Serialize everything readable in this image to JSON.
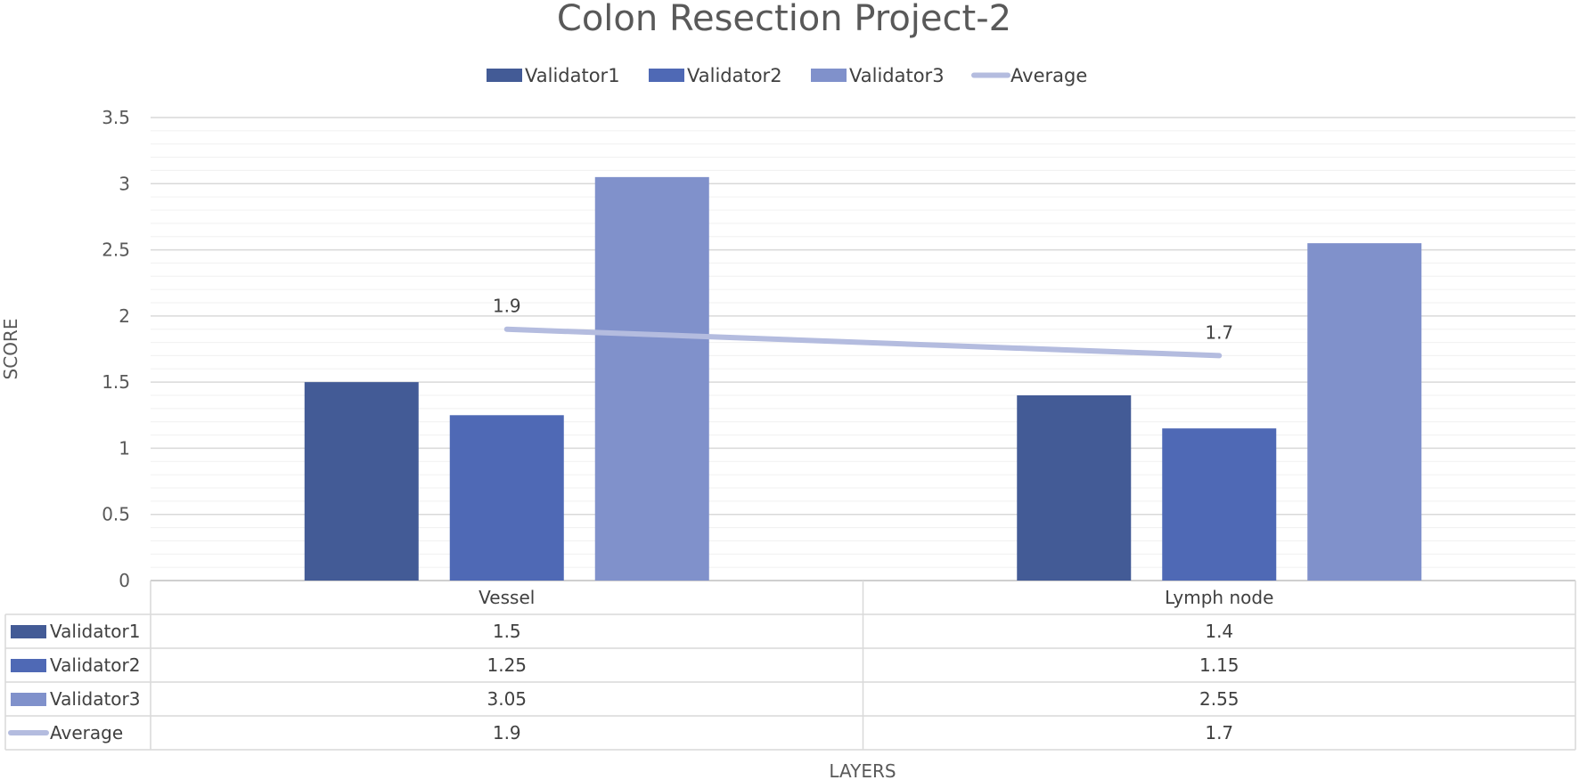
{
  "chart_data": {
    "type": "bar",
    "title": "Colon Resection Project-2",
    "categories": [
      "Vessel",
      "Lymph node"
    ],
    "series": [
      {
        "name": "Validator1",
        "type": "bar",
        "values": [
          1.5,
          1.4
        ],
        "color": "#435B96"
      },
      {
        "name": "Validator2",
        "type": "bar",
        "values": [
          1.25,
          1.15
        ],
        "color": "#4F69B5"
      },
      {
        "name": "Validator3",
        "type": "bar",
        "values": [
          3.05,
          2.55
        ],
        "color": "#8091CB"
      },
      {
        "name": "Average",
        "type": "line",
        "values": [
          1.9,
          1.7
        ],
        "color": "#B4BCDF",
        "data_labels": [
          "1.9",
          "1.7"
        ]
      }
    ],
    "table_values": [
      [
        "1.5",
        "1.4"
      ],
      [
        "1.25",
        "1.15"
      ],
      [
        "3.05",
        "2.55"
      ],
      [
        "1.9",
        "1.7"
      ]
    ],
    "xlabel": "LAYERS",
    "ylabel": "SCORE",
    "ylim": [
      0,
      3.5
    ],
    "yticks": [
      "0",
      "0.5",
      "1",
      "1.5",
      "2",
      "2.5",
      "3",
      "3.5"
    ],
    "ytick_values": [
      0,
      0.5,
      1,
      1.5,
      2,
      2.5,
      3,
      3.5
    ],
    "minor_gridlines_per_major": 5,
    "grid": true,
    "legend_position": "top",
    "data_table": true
  }
}
